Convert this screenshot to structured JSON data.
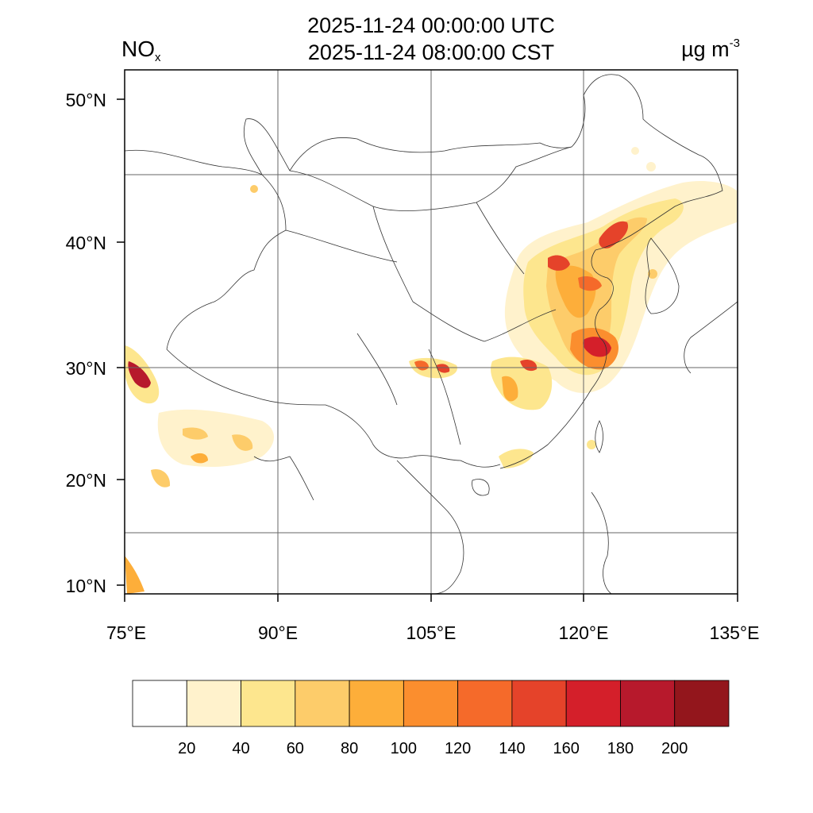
{
  "header": {
    "title_line1": "2025-11-24 00:00:00 UTC",
    "title_line2": "2025-11-24 08:00:00 CST",
    "variable": "NO",
    "variable_sub": "x",
    "unit": "µg m",
    "unit_sup": "-3"
  },
  "map": {
    "lon_range": [
      75,
      135
    ],
    "lat_range": [
      9,
      52
    ],
    "lat_labels": [
      "50°N",
      "40°N",
      "30°N",
      "20°N",
      "10°N"
    ],
    "lon_labels": [
      "75°E",
      "90°E",
      "105°E",
      "120°E",
      "135°E"
    ]
  },
  "colorbar": {
    "labels": [
      "20",
      "40",
      "60",
      "80",
      "100",
      "120",
      "140",
      "160",
      "180",
      "200"
    ],
    "colors": [
      "#ffffff",
      "#fff2cc",
      "#fde68e",
      "#fdcc6a",
      "#fdae3a",
      "#fb8e2e",
      "#f56a2a",
      "#e5432a",
      "#d41f2a",
      "#b7192c",
      "#93161c"
    ]
  }
}
